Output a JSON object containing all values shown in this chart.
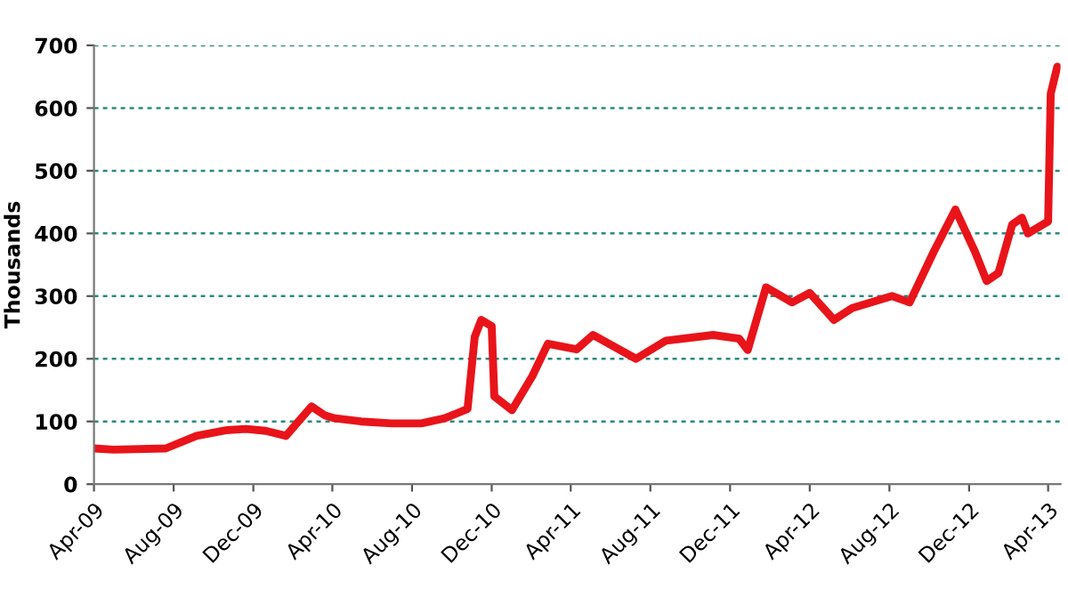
{
  "chart_data": {
    "type": "line",
    "ylabel": "Thousands",
    "x": [
      "2009-04-01",
      "2009-05-01",
      "2009-07-20",
      "2009-09-05",
      "2009-10-20",
      "2009-11-20",
      "2009-12-20",
      "2010-01-20",
      "2010-02-28",
      "2010-03-20",
      "2010-04-05",
      "2010-05-15",
      "2010-07-01",
      "2010-08-15",
      "2010-09-20",
      "2010-10-25",
      "2010-11-05",
      "2010-11-15",
      "2010-12-01",
      "2010-12-05",
      "2011-01-01",
      "2011-02-01",
      "2011-02-25",
      "2011-04-10",
      "2011-05-05",
      "2011-07-10",
      "2011-08-25",
      "2011-11-05",
      "2011-12-15",
      "2011-12-28",
      "2012-01-25",
      "2012-03-05",
      "2012-04-01",
      "2012-05-08",
      "2012-06-05",
      "2012-08-05",
      "2012-09-01",
      "2012-10-08",
      "2012-11-10",
      "2012-12-10",
      "2012-12-28",
      "2013-01-15",
      "2013-02-05",
      "2013-02-20",
      "2013-03-01",
      "2013-04-01",
      "2013-04-05",
      "2013-04-15"
    ],
    "series": [
      {
        "color": "#e8141a",
        "values": [
          57,
          55,
          57,
          77,
          86,
          88,
          85,
          77,
          124,
          110,
          105,
          100,
          97,
          97,
          105,
          120,
          235,
          262,
          252,
          140,
          118,
          172,
          224,
          215,
          238,
          200,
          229,
          238,
          232,
          214,
          314,
          290,
          305,
          262,
          281,
          300,
          290,
          371,
          438,
          371,
          324,
          337,
          414,
          425,
          400,
          419,
          623,
          666
        ]
      }
    ],
    "xlim": [
      "2009-04-01",
      "2013-04-20"
    ],
    "xticks": [
      {
        "value": "2009-04-01",
        "label": "Apr-09"
      },
      {
        "value": "2009-08-01",
        "label": "Aug-09"
      },
      {
        "value": "2009-12-01",
        "label": "Dec-09"
      },
      {
        "value": "2010-04-01",
        "label": "Apr-10"
      },
      {
        "value": "2010-08-01",
        "label": "Aug-10"
      },
      {
        "value": "2010-12-01",
        "label": "Dec-10"
      },
      {
        "value": "2011-04-01",
        "label": "Apr-11"
      },
      {
        "value": "2011-08-01",
        "label": "Aug-11"
      },
      {
        "value": "2011-12-01",
        "label": "Dec-11"
      },
      {
        "value": "2012-04-01",
        "label": "Apr-12"
      },
      {
        "value": "2012-08-01",
        "label": "Aug-12"
      },
      {
        "value": "2012-12-01",
        "label": "Dec-12"
      },
      {
        "value": "2013-04-01",
        "label": "Apr-13"
      }
    ],
    "ylim": [
      0,
      700
    ],
    "yticks": [
      0,
      100,
      200,
      300,
      400,
      500,
      600,
      700
    ],
    "grid": "y",
    "marker": "none",
    "line_style": "solid"
  }
}
